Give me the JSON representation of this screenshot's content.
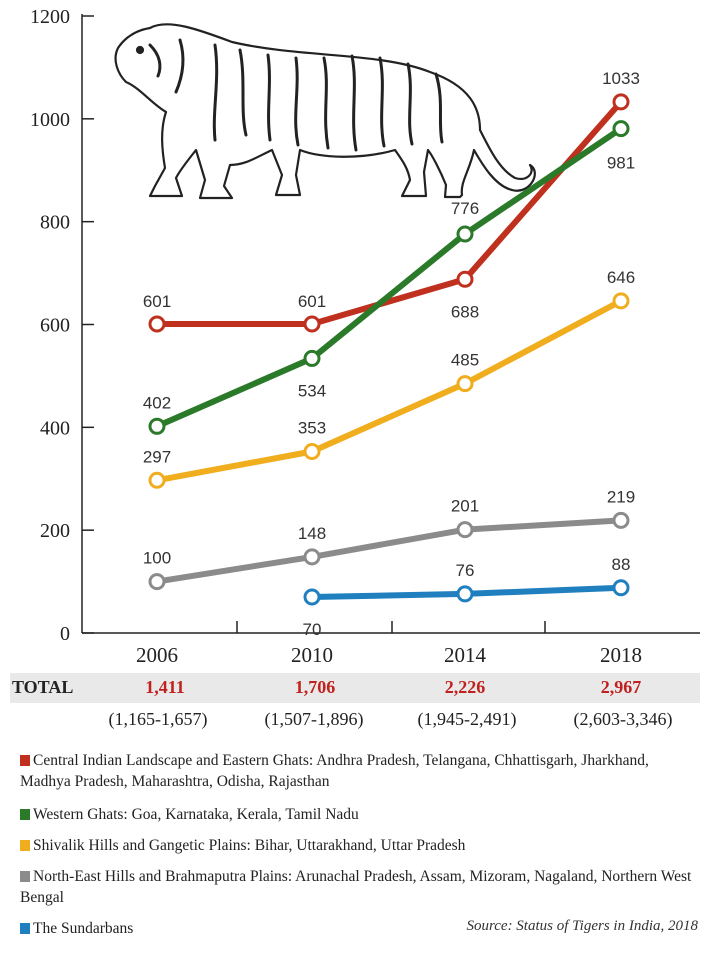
{
  "chart_data": {
    "type": "line",
    "title": "",
    "xlabel": "",
    "ylabel": "",
    "categories": [
      "2006",
      "2010",
      "2014",
      "2018"
    ],
    "ylim": [
      0,
      1200
    ],
    "yticks": [
      0,
      200,
      400,
      600,
      800,
      1000,
      1200
    ],
    "series": [
      {
        "name": "Central Indian Landscape and Eastern Ghats",
        "color": "#c0301e",
        "values": [
          601,
          601,
          688,
          1033
        ]
      },
      {
        "name": "Western Ghats",
        "color": "#2b7a2a",
        "values": [
          402,
          534,
          776,
          981
        ]
      },
      {
        "name": "Shivalik Hills and Gangetic Plains",
        "color": "#f0ad1d",
        "values": [
          297,
          353,
          485,
          646
        ]
      },
      {
        "name": "North-East Hills and Brahmaputra Plains",
        "color": "#8b8b8b",
        "values": [
          100,
          148,
          201,
          219
        ]
      },
      {
        "name": "The Sundarbans",
        "color": "#1f7fbf",
        "values": [
          null,
          70,
          76,
          88
        ]
      }
    ]
  },
  "totals": {
    "label": "TOTAL",
    "values": [
      "1,411",
      "1,706",
      "2,226",
      "2,967"
    ],
    "ranges": [
      "(1,165-1,657)",
      "(1,507-1,896)",
      "(1,945-2,491)",
      "(2,603-3,346)"
    ]
  },
  "legend": [
    {
      "color": "#c0301e",
      "text": "Central Indian Landscape and Eastern Ghats: Andhra Pradesh, Telangana, Chhattisgarh, Jharkhand, Madhya Pradesh, Maharashtra, Odisha, Rajasthan"
    },
    {
      "color": "#2b7a2a",
      "text": "Western Ghats: Goa, Karnataka, Kerala, Tamil Nadu"
    },
    {
      "color": "#f0ad1d",
      "text": "Shivalik Hills and Gangetic Plains: Bihar, Uttarakhand, Uttar Pradesh"
    },
    {
      "color": "#8b8b8b",
      "text": "North-East Hills and Brahmaputra Plains: Arunachal Pradesh, Assam, Mizoram, Nagaland, Northern West Bengal"
    },
    {
      "color": "#1f7fbf",
      "text": "The Sundarbans"
    }
  ],
  "source": "Source: Status of Tigers in India, 2018"
}
